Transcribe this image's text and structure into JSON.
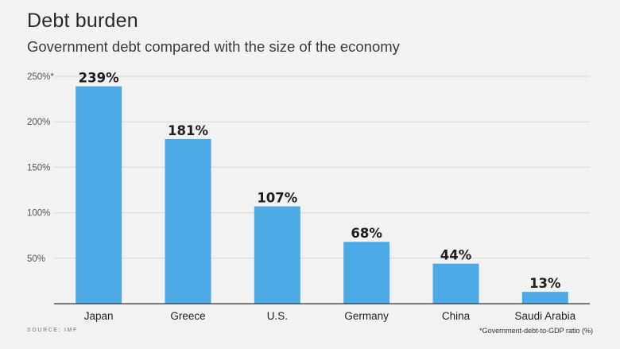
{
  "header": {
    "title": "Debt burden",
    "subtitle": "Government debt compared with the size of the economy"
  },
  "footer": {
    "source": "SOURCE: IMF",
    "note": "*Government-debt-to-GDP ratio (%)"
  },
  "chart_data": {
    "type": "bar",
    "title": "Debt burden",
    "subtitle": "Government debt compared with the size of the economy",
    "categories": [
      "Japan",
      "Greece",
      "U.S.",
      "Germany",
      "China",
      "Saudi Arabia"
    ],
    "values": [
      239,
      181,
      107,
      68,
      44,
      13
    ],
    "value_labels": [
      "239%",
      "181%",
      "107%",
      "68%",
      "44%",
      "13%"
    ],
    "yticks": [
      {
        "value": 50,
        "label": "50%"
      },
      {
        "value": 100,
        "label": "100%"
      },
      {
        "value": 150,
        "label": "150%"
      },
      {
        "value": 200,
        "label": "200%"
      },
      {
        "value": 250,
        "label": "250%*"
      }
    ],
    "ylim": [
      0,
      250
    ],
    "grid": true,
    "bar_color": "#4eaae6",
    "grid_color": "#d8d8d8",
    "axis_color": "#333333"
  }
}
